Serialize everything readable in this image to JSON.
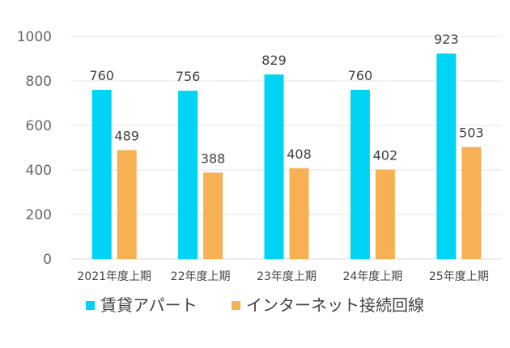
{
  "chart_data": {
    "type": "bar",
    "title": "",
    "xlabel": "",
    "ylabel": "",
    "ylim": [
      0,
      1000
    ],
    "yticks": [
      0,
      200,
      400,
      600,
      800,
      1000
    ],
    "grid": true,
    "legend_position": "bottom",
    "categories": [
      "2021年度上期",
      "22年度上期",
      "23年度上期",
      "24年度上期",
      "25年度上期"
    ],
    "series": [
      {
        "name": "賃貸アパート",
        "color": "#00d4f5",
        "values": [
          760,
          756,
          829,
          760,
          923
        ]
      },
      {
        "name": "インターネット接続回線",
        "color": "#f7b054",
        "values": [
          489,
          388,
          408,
          402,
          503
        ]
      }
    ]
  }
}
